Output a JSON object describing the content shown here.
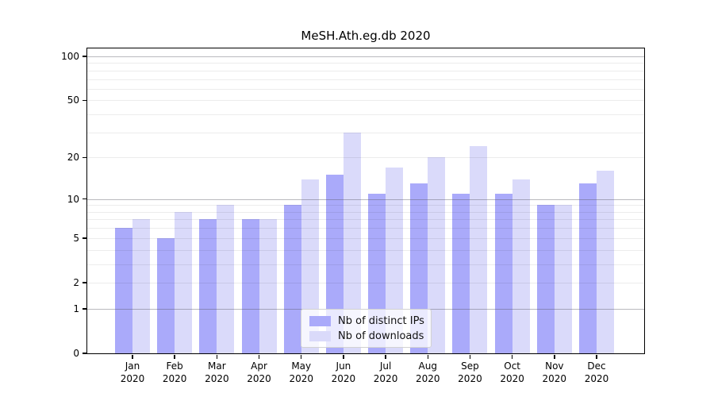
{
  "chart_data": {
    "type": "bar",
    "title": "MeSH.Ath.eg.db 2020",
    "categories": [
      "Jan",
      "Feb",
      "Mar",
      "Apr",
      "May",
      "Jun",
      "Jul",
      "Aug",
      "Sep",
      "Oct",
      "Nov",
      "Dec"
    ],
    "year_label": "2020",
    "series": [
      {
        "name": "Nb of distinct IPs",
        "color": "#aaaafa",
        "values": [
          6,
          5,
          7,
          7,
          9,
          15,
          11,
          13,
          11,
          11,
          9,
          13
        ]
      },
      {
        "name": "Nb of downloads",
        "color": "#dadafa",
        "values": [
          7,
          8,
          9,
          7,
          14,
          30,
          17,
          20,
          24,
          14,
          9,
          16
        ]
      }
    ],
    "yscale": "log1p",
    "ylim": [
      0,
      100
    ],
    "y_ticks": [
      0,
      1,
      2,
      5,
      10,
      20,
      50,
      100
    ],
    "y_minor_ticks": [
      3,
      4,
      6,
      7,
      8,
      9,
      30,
      40,
      60,
      70,
      80,
      90
    ],
    "grid": "horizontal",
    "legend_position": "bottom-center",
    "colors": {
      "axis": "#000000",
      "major_grid": "#b9b9bd",
      "minor_grid": "#ececec",
      "background": "#ffffff"
    }
  }
}
